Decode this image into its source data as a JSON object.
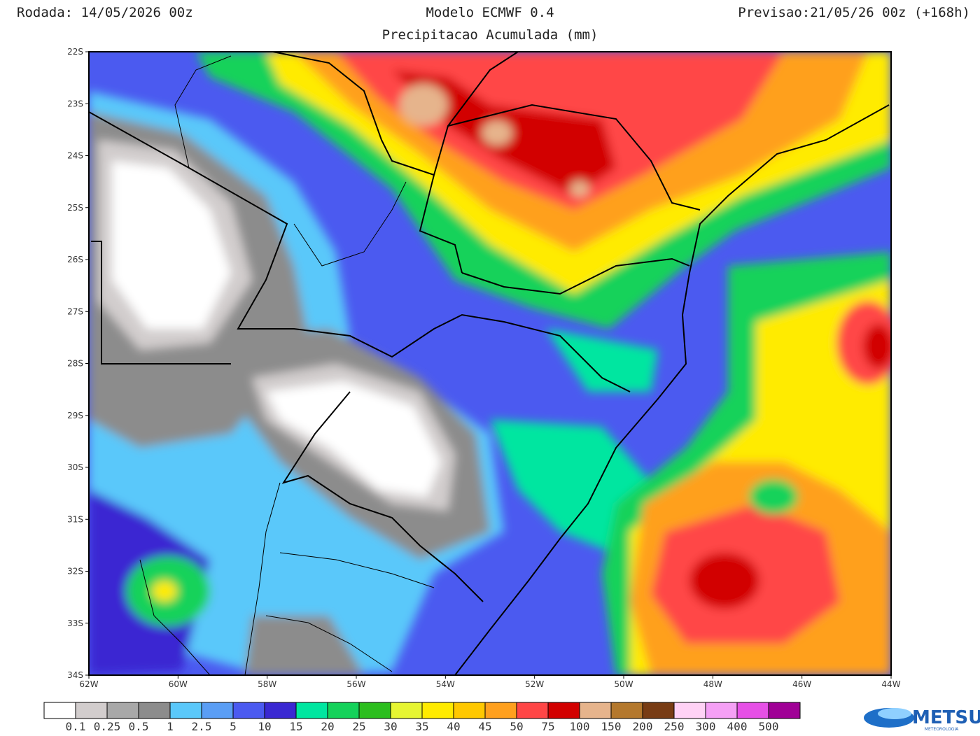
{
  "header": {
    "run": "Rodada: 14/05/2026 00z",
    "model": "Modelo ECMWF 0.4",
    "subtitle": "Precipitacao Acumulada (mm)",
    "forecast": "Previsao:21/05/26 00z (+168h)"
  },
  "map": {
    "lat_labels": [
      "22S",
      "23S",
      "24S",
      "25S",
      "26S",
      "27S",
      "28S",
      "29S",
      "30S",
      "31S",
      "32S",
      "33S",
      "34S"
    ],
    "lon_labels": [
      "62W",
      "60W",
      "58W",
      "56W",
      "54W",
      "52W",
      "50W",
      "48W",
      "46W",
      "44W"
    ]
  },
  "colorbar": {
    "labels": [
      "0.1",
      "0.25",
      "0.5",
      "1",
      "2.5",
      "5",
      "10",
      "15",
      "20",
      "25",
      "30",
      "35",
      "40",
      "45",
      "50",
      "75",
      "100",
      "150",
      "200",
      "250",
      "300",
      "400",
      "500"
    ],
    "colors": [
      "#ffffff",
      "#d2cdcd",
      "#a8a8a8",
      "#8c8c8c",
      "#5ac8fa",
      "#5a9ef5",
      "#4b5af0",
      "#3a28d2",
      "#00e6a0",
      "#14d25a",
      "#2cbe1e",
      "#e6f532",
      "#ffeb00",
      "#ffc800",
      "#ffa01e",
      "#ff4646",
      "#d20000",
      "#e6b48c",
      "#b4782d",
      "#783c14",
      "#ffd2f5",
      "#f5a0f5",
      "#e650e6",
      "#a00096"
    ]
  },
  "logo": {
    "name": "METSUL",
    "tagline": "METEOROLOGIA"
  }
}
